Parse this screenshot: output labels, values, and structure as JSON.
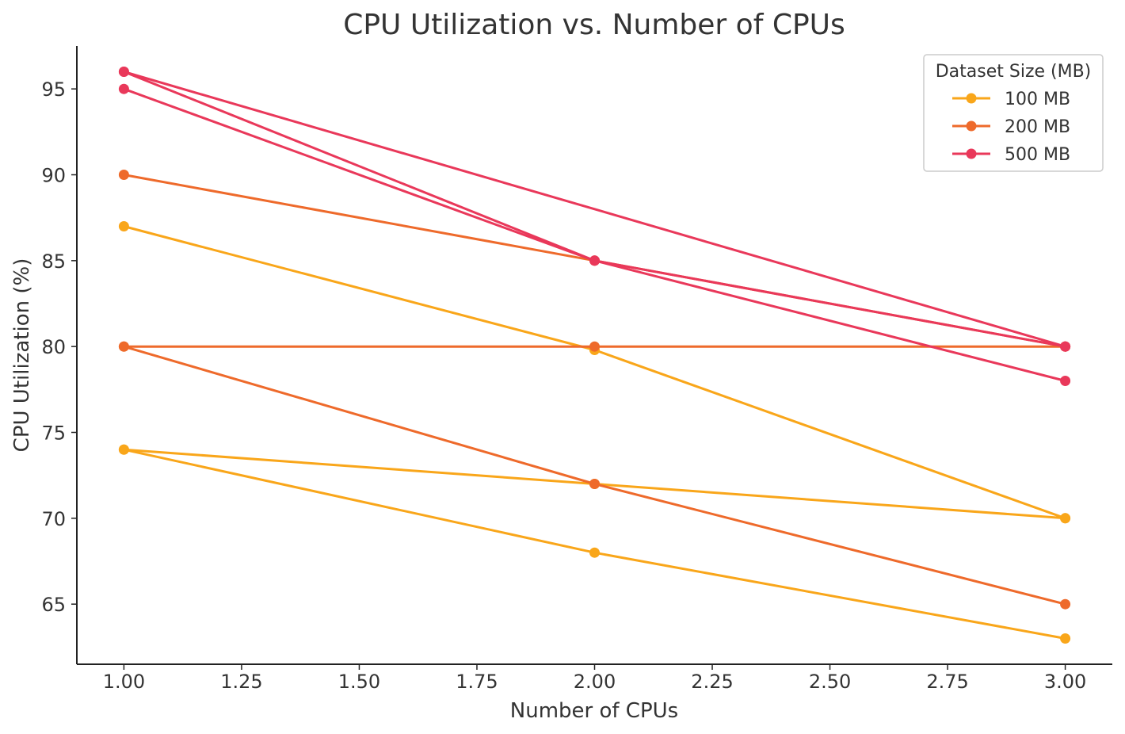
{
  "chart_data": {
    "type": "line",
    "title": "CPU Utilization vs. Number of CPUs",
    "xlabel": "Number of CPUs",
    "ylabel": "CPU Utilization (%)",
    "xlim": [
      0.9,
      3.1
    ],
    "ylim": [
      61.5,
      97.5
    ],
    "x_ticks": [
      1.0,
      1.25,
      1.5,
      1.75,
      2.0,
      2.25,
      2.5,
      2.75,
      3.0
    ],
    "x_tick_labels": [
      "1.00",
      "1.25",
      "1.50",
      "1.75",
      "2.00",
      "2.25",
      "2.50",
      "2.75",
      "3.00"
    ],
    "y_ticks": [
      65,
      70,
      75,
      80,
      85,
      90,
      95
    ],
    "y_tick_labels": [
      "65",
      "70",
      "75",
      "80",
      "85",
      "90",
      "95"
    ],
    "grid": false,
    "legend": {
      "title": "Dataset Size (MB)",
      "placement": "top-right",
      "entries": [
        {
          "label": "100 MB",
          "color": "#F9A61A"
        },
        {
          "label": "200 MB",
          "color": "#EE6A2B"
        },
        {
          "label": "500 MB",
          "color": "#E9385A"
        }
      ]
    },
    "series": [
      {
        "group": "100 MB",
        "color": "#F9A61A",
        "x": [
          1,
          2,
          3
        ],
        "y": [
          87,
          79.8,
          70
        ]
      },
      {
        "group": "100 MB",
        "color": "#F9A61A",
        "x": [
          1,
          2,
          3
        ],
        "y": [
          74,
          72,
          70
        ]
      },
      {
        "group": "100 MB",
        "color": "#F9A61A",
        "x": [
          1,
          2,
          3
        ],
        "y": [
          74,
          68,
          63
        ]
      },
      {
        "group": "200 MB",
        "color": "#EE6A2B",
        "x": [
          1,
          2,
          3
        ],
        "y": [
          90,
          85,
          80
        ]
      },
      {
        "group": "200 MB",
        "color": "#EE6A2B",
        "x": [
          1,
          2,
          3
        ],
        "y": [
          80,
          80,
          80
        ]
      },
      {
        "group": "200 MB",
        "color": "#EE6A2B",
        "x": [
          1,
          2,
          3
        ],
        "y": [
          80,
          72,
          65
        ]
      },
      {
        "group": "500 MB",
        "color": "#E9385A",
        "x": [
          1,
          2,
          3
        ],
        "y": [
          96,
          85,
          80
        ]
      },
      {
        "group": "500 MB",
        "color": "#E9385A",
        "x": [
          1,
          2,
          3
        ],
        "y": [
          95,
          85,
          78
        ]
      },
      {
        "group": "500 MB",
        "color": "#E9385A",
        "x": [
          1,
          3
        ],
        "y": [
          96,
          80
        ]
      }
    ]
  }
}
